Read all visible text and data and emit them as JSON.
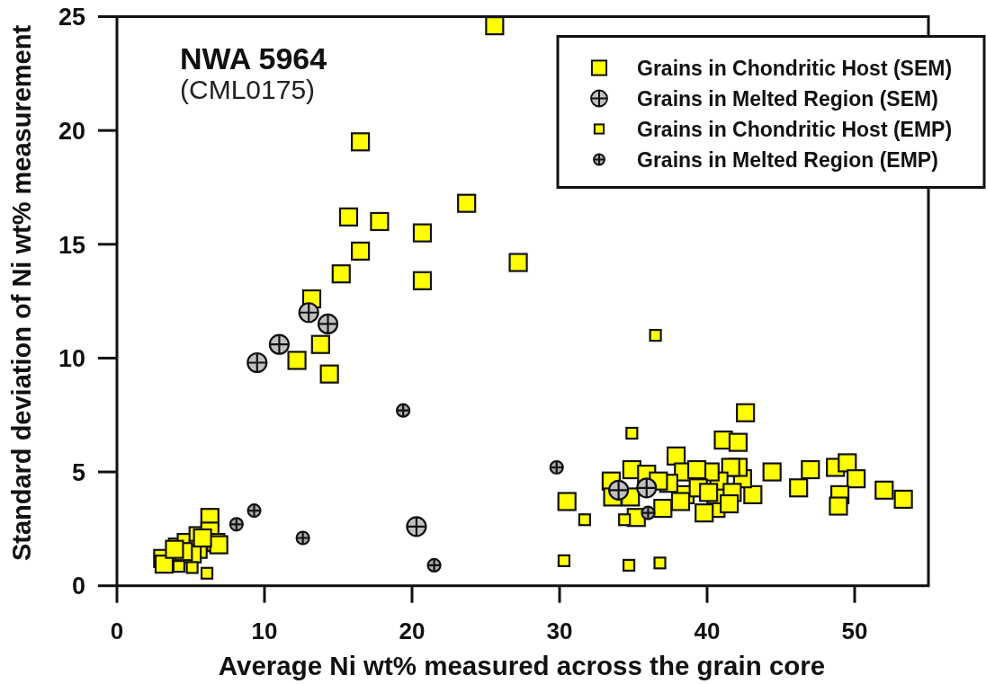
{
  "chart_data": {
    "type": "scatter",
    "title": "NWA 5964",
    "subtitle": "(CML0175)",
    "xlabel": "Average Ni wt% measured across the grain core",
    "ylabel": "Standard deviation of Ni wt% measurement",
    "xlim": [
      0,
      55
    ],
    "ylim": [
      0,
      25
    ],
    "xticks": [
      0,
      10,
      20,
      30,
      40,
      50
    ],
    "yticks": [
      0,
      5,
      10,
      15,
      20,
      25
    ],
    "legend": "top right",
    "series": [
      {
        "name": "Grains in Chondritic Host (SEM)",
        "color": "#ffff00",
        "marker": "square",
        "x": [
          16.5,
          23.7,
          15.7,
          17.8,
          20.7,
          16.5,
          15.2,
          20.7,
          13.2,
          13.8,
          12.2,
          14.4,
          27.2,
          25.6,
          6.3,
          3.1,
          3.2,
          4.1,
          4.7,
          5.5,
          6.3,
          6.7,
          5.5,
          5.1,
          4.5,
          3.9,
          6.9,
          5.8,
          42.6,
          41.1,
          42.1,
          37.9,
          30.5,
          33.5,
          34.9,
          44.4,
          47.0,
          48.7,
          49.5,
          50.1,
          46.2,
          49.0,
          48.9,
          52.0,
          53.3,
          43.1,
          42.4,
          42.1,
          41.6,
          40.6,
          40.6,
          39.8,
          40.8,
          40.2,
          41.7,
          41.5,
          38.4,
          38.5,
          39.3,
          37.4,
          37.0,
          38.2,
          35.2,
          34.8,
          35.9,
          36.7,
          33.6,
          39.4,
          40.1
        ],
        "values": [
          19.5,
          16.8,
          16.2,
          16.0,
          15.5,
          14.7,
          13.7,
          13.4,
          12.6,
          10.6,
          9.9,
          9.3,
          14.2,
          24.6,
          3.0,
          1.2,
          0.95,
          1.7,
          1.9,
          2.2,
          2.4,
          1.9,
          1.6,
          1.4,
          1.5,
          1.6,
          1.8,
          2.1,
          7.6,
          6.4,
          6.3,
          5.7,
          3.7,
          4.6,
          5.1,
          5.0,
          5.1,
          5.2,
          5.4,
          4.7,
          4.3,
          4.0,
          3.5,
          4.2,
          3.8,
          4.0,
          4.7,
          5.2,
          5.2,
          3.4,
          4.0,
          3.2,
          4.6,
          5.0,
          4.1,
          3.6,
          5.0,
          4.0,
          5.1,
          4.5,
          3.4,
          3.7,
          3.0,
          3.9,
          4.9,
          4.6,
          3.9,
          4.3,
          4.1
        ]
      },
      {
        "name": "Grains in Melted Region (SEM)",
        "color": "#c0c0c0",
        "marker": "circle",
        "x": [
          13.0,
          14.3,
          11.0,
          9.5,
          20.3,
          34.0,
          35.9
        ],
        "values": [
          12.0,
          11.5,
          10.6,
          9.8,
          2.6,
          4.2,
          4.3
        ]
      },
      {
        "name": "Grains in Chondritic Host (EMP)",
        "color": "#ffff00",
        "marker": "square",
        "x": [
          6.1,
          36.5,
          34.9,
          31.7,
          30.3,
          34.7,
          36.8,
          34.4,
          4.2,
          5.1
        ],
        "values": [
          0.55,
          11.0,
          6.7,
          2.9,
          1.1,
          0.9,
          1.0,
          2.9,
          0.85,
          0.8
        ]
      },
      {
        "name": "Grains in Melted Region (EMP)",
        "color": "#a8a8a8",
        "marker": "circle",
        "x": [
          8.1,
          9.3,
          12.6,
          19.4,
          21.5,
          29.8,
          36.0
        ],
        "values": [
          2.7,
          3.3,
          2.1,
          7.7,
          0.9,
          5.2,
          3.2
        ]
      }
    ]
  }
}
